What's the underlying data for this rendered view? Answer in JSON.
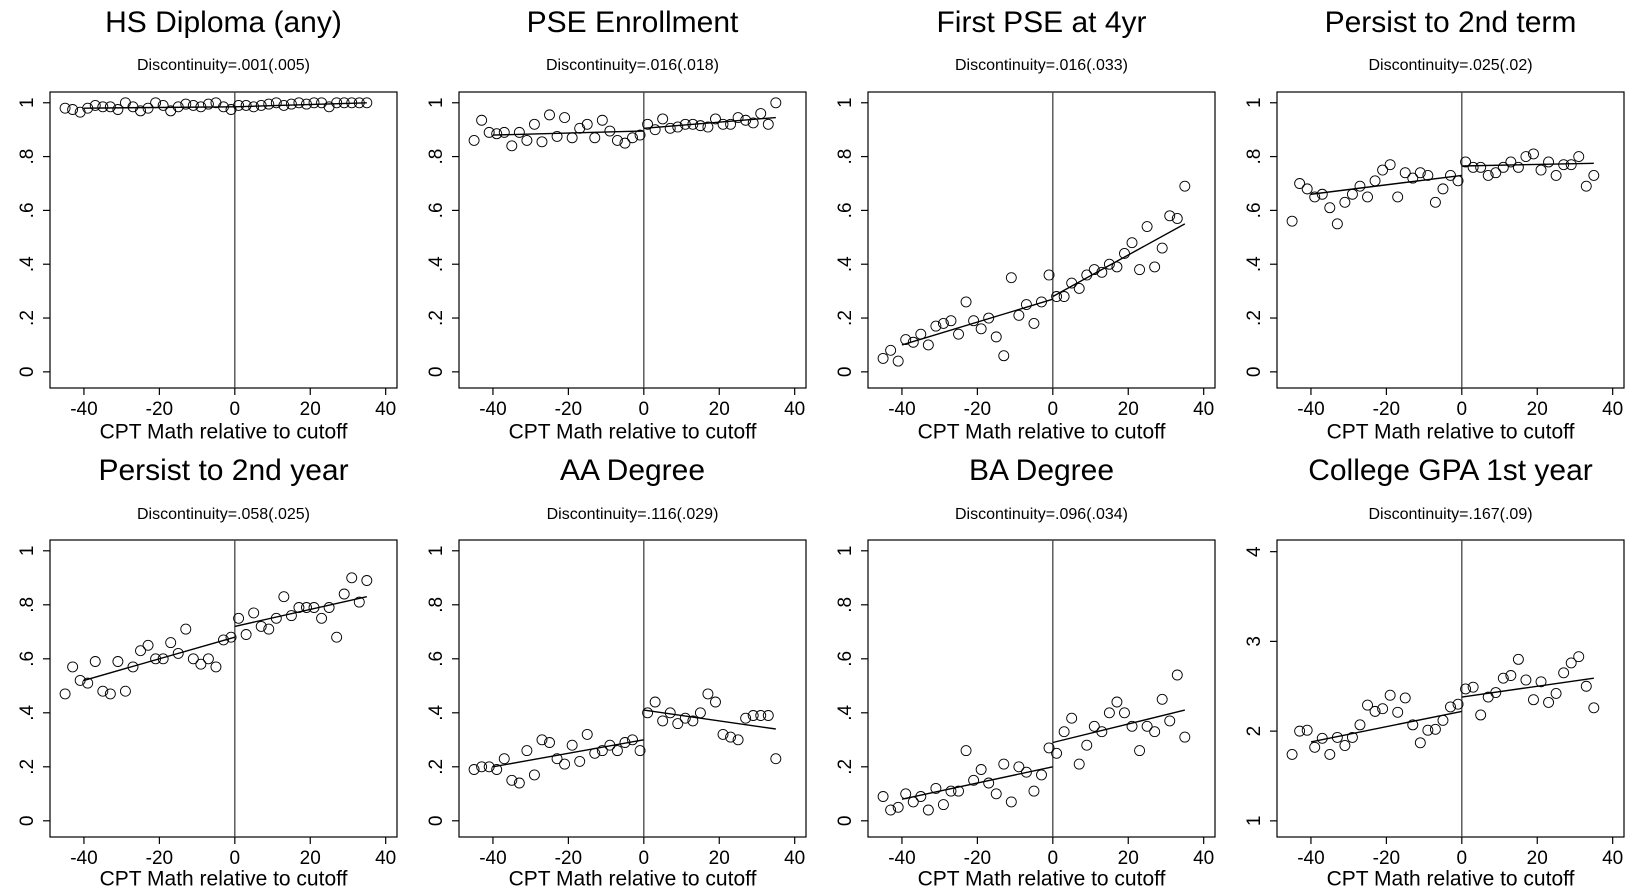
{
  "chart_data": [
    {
      "type": "scatter",
      "title": "HS Diploma (any)",
      "subtitle": "Discontinuity=.001(.005)",
      "xlabel": "CPT Math relative to cutoff",
      "xlim": [
        -49,
        43
      ],
      "ylim": [
        -0.06,
        1.04
      ],
      "xticks": [
        -40,
        -20,
        0,
        20,
        40
      ],
      "yticks": [
        0,
        {
          "value": 0.2,
          "label": ".2"
        },
        {
          "value": 0.4,
          "label": ".4"
        },
        {
          "value": 0.6,
          "label": ".6"
        },
        {
          "value": 0.8,
          "label": ".8"
        },
        1
      ],
      "cutoff": 0,
      "x": [
        -45,
        -43,
        -41,
        -39,
        -37,
        -35,
        -33,
        -31,
        -29,
        -27,
        -25,
        -23,
        -21,
        -19,
        -17,
        -15,
        -13,
        -11,
        -9,
        -7,
        -5,
        -3,
        -1,
        1,
        3,
        5,
        7,
        9,
        11,
        13,
        15,
        17,
        19,
        21,
        23,
        25,
        27,
        29,
        31,
        33,
        35
      ],
      "values": [
        0.98,
        0.975,
        0.965,
        0.98,
        0.99,
        0.985,
        0.985,
        0.975,
        1.0,
        0.985,
        0.97,
        0.98,
        1.0,
        0.99,
        0.97,
        0.985,
        0.995,
        0.99,
        0.985,
        0.995,
        1.0,
        0.985,
        0.975,
        0.99,
        0.99,
        0.985,
        0.99,
        0.995,
        1.0,
        0.99,
        0.995,
        1.0,
        0.995,
        1.0,
        1.0,
        0.985,
        1.0,
        1.0,
        1.0,
        1.0,
        1.0
      ],
      "fit": [
        {
          "x": [
            -40,
            0
          ],
          "values": [
            0.98,
            0.985
          ]
        },
        {
          "x": [
            0,
            35
          ],
          "values": [
            0.985,
            1.0
          ]
        }
      ]
    },
    {
      "type": "scatter",
      "title": "PSE Enrollment",
      "subtitle": "Discontinuity=.016(.018)",
      "xlabel": "CPT Math relative to cutoff",
      "xlim": [
        -49,
        43
      ],
      "ylim": [
        -0.06,
        1.04
      ],
      "xticks": [
        -40,
        -20,
        0,
        20,
        40
      ],
      "yticks": [
        0,
        {
          "value": 0.2,
          "label": ".2"
        },
        {
          "value": 0.4,
          "label": ".4"
        },
        {
          "value": 0.6,
          "label": ".6"
        },
        {
          "value": 0.8,
          "label": ".8"
        },
        1
      ],
      "cutoff": 0,
      "x": [
        -45,
        -43,
        -41,
        -39,
        -37,
        -35,
        -33,
        -31,
        -29,
        -27,
        -25,
        -23,
        -21,
        -19,
        -17,
        -15,
        -13,
        -11,
        -9,
        -7,
        -5,
        -3,
        -1,
        1,
        3,
        5,
        7,
        9,
        11,
        13,
        15,
        17,
        19,
        21,
        23,
        25,
        27,
        29,
        31,
        33,
        35
      ],
      "values": [
        0.86,
        0.935,
        0.89,
        0.885,
        0.89,
        0.84,
        0.89,
        0.86,
        0.92,
        0.855,
        0.955,
        0.875,
        0.945,
        0.87,
        0.905,
        0.92,
        0.87,
        0.935,
        0.895,
        0.86,
        0.85,
        0.87,
        0.88,
        0.92,
        0.9,
        0.94,
        0.905,
        0.91,
        0.92,
        0.92,
        0.915,
        0.91,
        0.94,
        0.92,
        0.92,
        0.945,
        0.935,
        0.925,
        0.96,
        0.92,
        1.0
      ],
      "fit": [
        {
          "x": [
            -40,
            0
          ],
          "values": [
            0.88,
            0.895
          ]
        },
        {
          "x": [
            0,
            35
          ],
          "values": [
            0.905,
            0.945
          ]
        }
      ]
    },
    {
      "type": "scatter",
      "title": "First PSE at 4yr",
      "subtitle": "Discontinuity=.016(.033)",
      "xlabel": "CPT Math relative to cutoff",
      "xlim": [
        -49,
        43
      ],
      "ylim": [
        -0.06,
        1.04
      ],
      "xticks": [
        -40,
        -20,
        0,
        20,
        40
      ],
      "yticks": [
        0,
        {
          "value": 0.2,
          "label": ".2"
        },
        {
          "value": 0.4,
          "label": ".4"
        },
        {
          "value": 0.6,
          "label": ".6"
        },
        {
          "value": 0.8,
          "label": ".8"
        },
        1
      ],
      "cutoff": 0,
      "x": [
        -45,
        -43,
        -41,
        -39,
        -37,
        -35,
        -33,
        -31,
        -29,
        -27,
        -25,
        -23,
        -21,
        -19,
        -17,
        -15,
        -13,
        -11,
        -9,
        -7,
        -5,
        -3,
        -1,
        1,
        3,
        5,
        7,
        9,
        11,
        13,
        15,
        17,
        19,
        21,
        23,
        25,
        27,
        29,
        31,
        33,
        35
      ],
      "values": [
        0.05,
        0.08,
        0.04,
        0.12,
        0.11,
        0.14,
        0.1,
        0.17,
        0.18,
        0.19,
        0.14,
        0.26,
        0.19,
        0.16,
        0.2,
        0.13,
        0.06,
        0.35,
        0.21,
        0.25,
        0.18,
        0.26,
        0.36,
        0.28,
        0.28,
        0.33,
        0.31,
        0.36,
        0.38,
        0.37,
        0.4,
        0.39,
        0.44,
        0.48,
        0.38,
        0.54,
        0.39,
        0.46,
        0.58,
        0.57,
        0.69
      ],
      "fit": [
        {
          "x": [
            -40,
            0
          ],
          "values": [
            0.1,
            0.27
          ]
        },
        {
          "x": [
            0,
            35
          ],
          "values": [
            0.28,
            0.55
          ]
        }
      ]
    },
    {
      "type": "scatter",
      "title": "Persist to 2nd term",
      "subtitle": "Discontinuity=.025(.02)",
      "xlabel": "CPT Math relative to cutoff",
      "xlim": [
        -49,
        43
      ],
      "ylim": [
        -0.06,
        1.04
      ],
      "xticks": [
        -40,
        -20,
        0,
        20,
        40
      ],
      "yticks": [
        0,
        {
          "value": 0.2,
          "label": ".2"
        },
        {
          "value": 0.4,
          "label": ".4"
        },
        {
          "value": 0.6,
          "label": ".6"
        },
        {
          "value": 0.8,
          "label": ".8"
        },
        1
      ],
      "cutoff": 0,
      "x": [
        -45,
        -43,
        -41,
        -39,
        -37,
        -35,
        -33,
        -31,
        -29,
        -27,
        -25,
        -23,
        -21,
        -19,
        -17,
        -15,
        -13,
        -11,
        -9,
        -7,
        -5,
        -3,
        -1,
        1,
        3,
        5,
        7,
        9,
        11,
        13,
        15,
        17,
        19,
        21,
        23,
        25,
        27,
        29,
        31,
        33,
        35
      ],
      "values": [
        0.56,
        0.7,
        0.68,
        0.65,
        0.66,
        0.61,
        0.55,
        0.63,
        0.66,
        0.69,
        0.65,
        0.71,
        0.75,
        0.77,
        0.65,
        0.74,
        0.72,
        0.74,
        0.73,
        0.63,
        0.68,
        0.73,
        0.71,
        0.78,
        0.76,
        0.76,
        0.73,
        0.74,
        0.76,
        0.78,
        0.76,
        0.8,
        0.81,
        0.75,
        0.78,
        0.73,
        0.77,
        0.77,
        0.8,
        0.69,
        0.73
      ],
      "fit": [
        {
          "x": [
            -40,
            0
          ],
          "values": [
            0.66,
            0.73
          ]
        },
        {
          "x": [
            0,
            35
          ],
          "values": [
            0.765,
            0.775
          ]
        }
      ]
    },
    {
      "type": "scatter",
      "title": "Persist to 2nd year",
      "subtitle": "Discontinuity=.058(.025)",
      "xlabel": "CPT Math relative to cutoff",
      "xlim": [
        -49,
        43
      ],
      "ylim": [
        -0.06,
        1.04
      ],
      "xticks": [
        -40,
        -20,
        0,
        20,
        40
      ],
      "yticks": [
        0,
        {
          "value": 0.2,
          "label": ".2"
        },
        {
          "value": 0.4,
          "label": ".4"
        },
        {
          "value": 0.6,
          "label": ".6"
        },
        {
          "value": 0.8,
          "label": ".8"
        },
        1
      ],
      "cutoff": 0,
      "x": [
        -45,
        -43,
        -41,
        -39,
        -37,
        -35,
        -33,
        -31,
        -29,
        -27,
        -25,
        -23,
        -21,
        -19,
        -17,
        -15,
        -13,
        -11,
        -9,
        -7,
        -5,
        -3,
        -1,
        1,
        3,
        5,
        7,
        9,
        11,
        13,
        15,
        17,
        19,
        21,
        23,
        25,
        27,
        29,
        31,
        33,
        35
      ],
      "values": [
        0.47,
        0.57,
        0.52,
        0.51,
        0.59,
        0.48,
        0.47,
        0.59,
        0.48,
        0.57,
        0.63,
        0.65,
        0.6,
        0.6,
        0.66,
        0.62,
        0.71,
        0.6,
        0.58,
        0.6,
        0.57,
        0.67,
        0.68,
        0.75,
        0.69,
        0.77,
        0.72,
        0.71,
        0.75,
        0.83,
        0.76,
        0.79,
        0.79,
        0.79,
        0.75,
        0.79,
        0.68,
        0.84,
        0.9,
        0.81,
        0.89
      ],
      "fit": [
        {
          "x": [
            -40,
            0
          ],
          "values": [
            0.52,
            0.68
          ]
        },
        {
          "x": [
            0,
            35
          ],
          "values": [
            0.72,
            0.83
          ]
        }
      ]
    },
    {
      "type": "scatter",
      "title": "AA Degree",
      "subtitle": "Discontinuity=.116(.029)",
      "xlabel": "CPT Math relative to cutoff",
      "xlim": [
        -49,
        43
      ],
      "ylim": [
        -0.06,
        1.04
      ],
      "xticks": [
        -40,
        -20,
        0,
        20,
        40
      ],
      "yticks": [
        0,
        {
          "value": 0.2,
          "label": ".2"
        },
        {
          "value": 0.4,
          "label": ".4"
        },
        {
          "value": 0.6,
          "label": ".6"
        },
        {
          "value": 0.8,
          "label": ".8"
        },
        1
      ],
      "cutoff": 0,
      "x": [
        -45,
        -43,
        -41,
        -39,
        -37,
        -35,
        -33,
        -31,
        -29,
        -27,
        -25,
        -23,
        -21,
        -19,
        -17,
        -15,
        -13,
        -11,
        -9,
        -7,
        -5,
        -3,
        -1,
        1,
        3,
        5,
        7,
        9,
        11,
        13,
        15,
        17,
        19,
        21,
        23,
        25,
        27,
        29,
        31,
        33,
        35
      ],
      "values": [
        0.19,
        0.2,
        0.2,
        0.19,
        0.23,
        0.15,
        0.14,
        0.26,
        0.17,
        0.3,
        0.29,
        0.23,
        0.21,
        0.28,
        0.22,
        0.32,
        0.25,
        0.26,
        0.28,
        0.26,
        0.29,
        0.3,
        0.26,
        0.4,
        0.44,
        0.37,
        0.4,
        0.36,
        0.38,
        0.37,
        0.4,
        0.47,
        0.44,
        0.32,
        0.31,
        0.3,
        0.38,
        0.39,
        0.39,
        0.39,
        0.23
      ],
      "fit": [
        {
          "x": [
            -40,
            0
          ],
          "values": [
            0.2,
            0.3
          ]
        },
        {
          "x": [
            0,
            35
          ],
          "values": [
            0.41,
            0.34
          ]
        }
      ]
    },
    {
      "type": "scatter",
      "title": "BA Degree",
      "subtitle": "Discontinuity=.096(.034)",
      "xlabel": "CPT Math relative to cutoff",
      "xlim": [
        -49,
        43
      ],
      "ylim": [
        -0.06,
        1.04
      ],
      "xticks": [
        -40,
        -20,
        0,
        20,
        40
      ],
      "yticks": [
        0,
        {
          "value": 0.2,
          "label": ".2"
        },
        {
          "value": 0.4,
          "label": ".4"
        },
        {
          "value": 0.6,
          "label": ".6"
        },
        {
          "value": 0.8,
          "label": ".8"
        },
        1
      ],
      "cutoff": 0,
      "x": [
        -45,
        -43,
        -41,
        -39,
        -37,
        -35,
        -33,
        -31,
        -29,
        -27,
        -25,
        -23,
        -21,
        -19,
        -17,
        -15,
        -13,
        -11,
        -9,
        -7,
        -5,
        -3,
        -1,
        1,
        3,
        5,
        7,
        9,
        11,
        13,
        15,
        17,
        19,
        21,
        23,
        25,
        27,
        29,
        31,
        33,
        35
      ],
      "values": [
        0.09,
        0.04,
        0.05,
        0.1,
        0.07,
        0.09,
        0.04,
        0.12,
        0.06,
        0.11,
        0.11,
        0.26,
        0.15,
        0.19,
        0.14,
        0.1,
        0.21,
        0.07,
        0.2,
        0.18,
        0.11,
        0.17,
        0.27,
        0.25,
        0.33,
        0.38,
        0.21,
        0.28,
        0.35,
        0.33,
        0.4,
        0.44,
        0.4,
        0.35,
        0.26,
        0.35,
        0.33,
        0.45,
        0.37,
        0.54,
        0.31
      ],
      "fit": [
        {
          "x": [
            -40,
            0
          ],
          "values": [
            0.08,
            0.2
          ]
        },
        {
          "x": [
            0,
            35
          ],
          "values": [
            0.29,
            0.41
          ]
        }
      ]
    },
    {
      "type": "scatter",
      "title": "College GPA 1st year",
      "subtitle": "Discontinuity=.167(.09)",
      "xlabel": "CPT Math relative to cutoff",
      "xlim": [
        -49,
        43
      ],
      "ylim": [
        0.82,
        4.13
      ],
      "xticks": [
        -40,
        -20,
        0,
        20,
        40
      ],
      "yticks": [
        1,
        2,
        3,
        4
      ],
      "cutoff": 0,
      "x": [
        -45,
        -43,
        -41,
        -39,
        -37,
        -35,
        -33,
        -31,
        -29,
        -27,
        -25,
        -23,
        -21,
        -19,
        -17,
        -15,
        -13,
        -11,
        -9,
        -7,
        -5,
        -3,
        -1,
        1,
        3,
        5,
        7,
        9,
        11,
        13,
        15,
        17,
        19,
        21,
        23,
        25,
        27,
        29,
        31,
        33,
        35
      ],
      "values": [
        1.74,
        2.0,
        2.01,
        1.82,
        1.92,
        1.74,
        1.93,
        1.84,
        1.93,
        2.07,
        2.29,
        2.22,
        2.25,
        2.4,
        2.21,
        2.37,
        2.07,
        1.87,
        2.01,
        2.02,
        2.12,
        2.27,
        2.3,
        2.47,
        2.49,
        2.18,
        2.38,
        2.43,
        2.59,
        2.62,
        2.8,
        2.57,
        2.35,
        2.55,
        2.32,
        2.42,
        2.65,
        2.76,
        2.83,
        2.5,
        2.26
      ],
      "fit": [
        {
          "x": [
            -40,
            0
          ],
          "values": [
            1.88,
            2.22
          ]
        },
        {
          "x": [
            0,
            35
          ],
          "values": [
            2.38,
            2.59
          ]
        }
      ]
    }
  ]
}
